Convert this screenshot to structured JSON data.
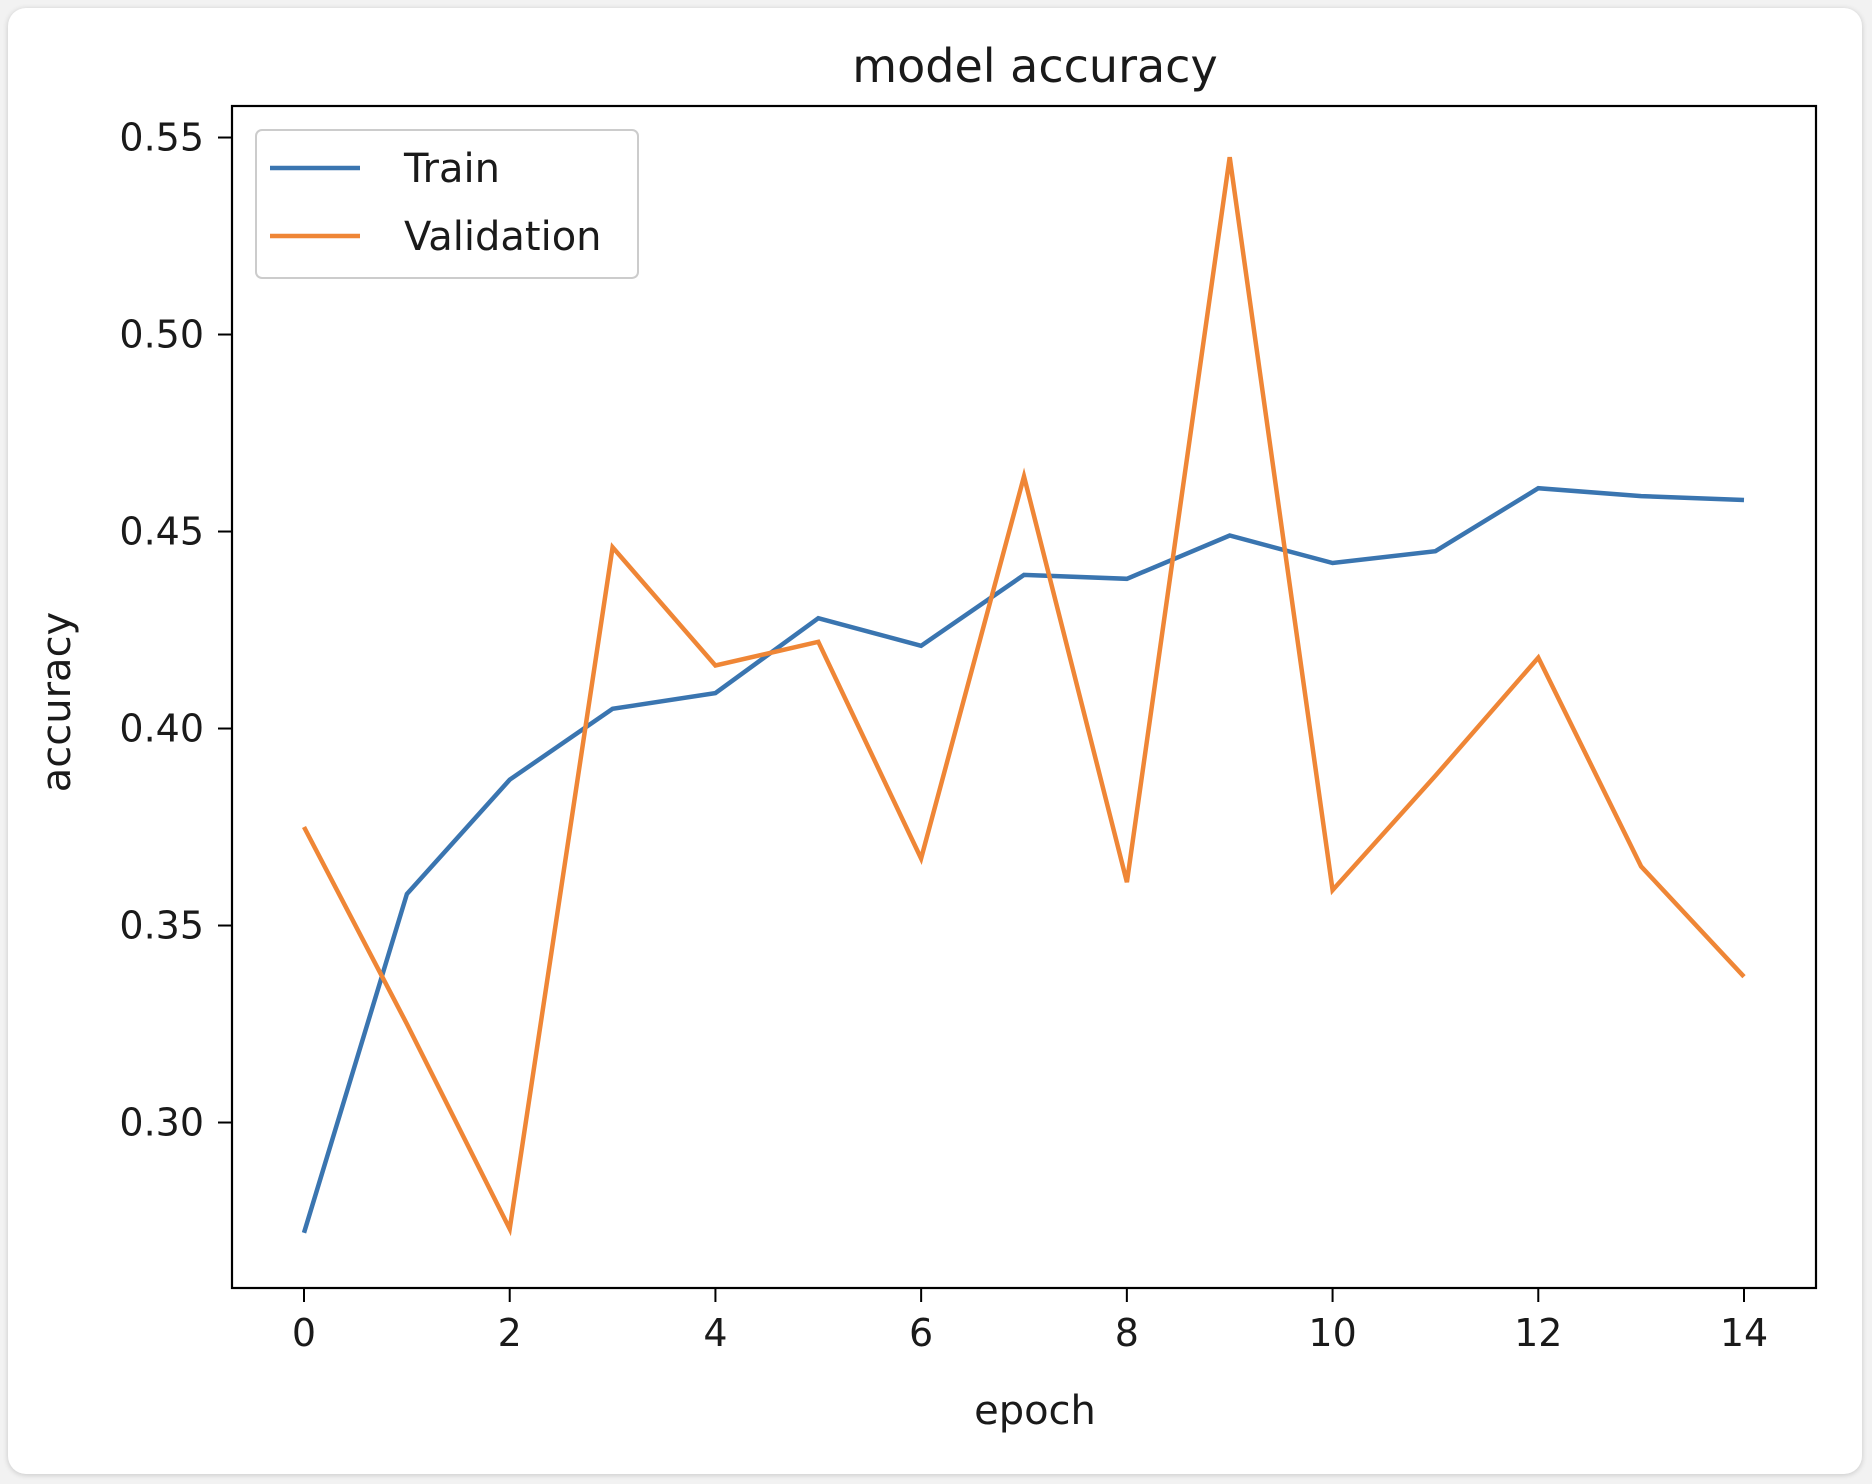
{
  "chart_data": {
    "type": "line",
    "title": "model accuracy",
    "xlabel": "epoch",
    "ylabel": "accuracy",
    "xlim": [
      -0.7,
      14.7
    ],
    "ylim": [
      0.258,
      0.558
    ],
    "xticks": [
      0,
      2,
      4,
      6,
      8,
      10,
      12,
      14
    ],
    "xtick_labels": [
      "0",
      "2",
      "4",
      "6",
      "8",
      "10",
      "12",
      "14"
    ],
    "yticks": [
      0.3,
      0.35,
      0.4,
      0.45,
      0.5,
      0.55
    ],
    "ytick_labels": [
      "0.30",
      "0.35",
      "0.40",
      "0.45",
      "0.50",
      "0.55"
    ],
    "grid": false,
    "legend_position": "top-left",
    "x": [
      0,
      1,
      2,
      3,
      4,
      5,
      6,
      7,
      8,
      9,
      10,
      11,
      12,
      13,
      14
    ],
    "series": [
      {
        "name": "Train",
        "color": "#3a75b0",
        "values": [
          0.272,
          0.358,
          0.387,
          0.405,
          0.409,
          0.428,
          0.421,
          0.439,
          0.438,
          0.449,
          0.442,
          0.445,
          0.461,
          0.459,
          0.458
        ]
      },
      {
        "name": "Validation",
        "color": "#ef8636",
        "values": [
          0.375,
          0.325,
          0.273,
          0.446,
          0.416,
          0.422,
          0.367,
          0.464,
          0.361,
          0.545,
          0.359,
          0.388,
          0.418,
          0.365,
          0.337
        ]
      }
    ]
  }
}
